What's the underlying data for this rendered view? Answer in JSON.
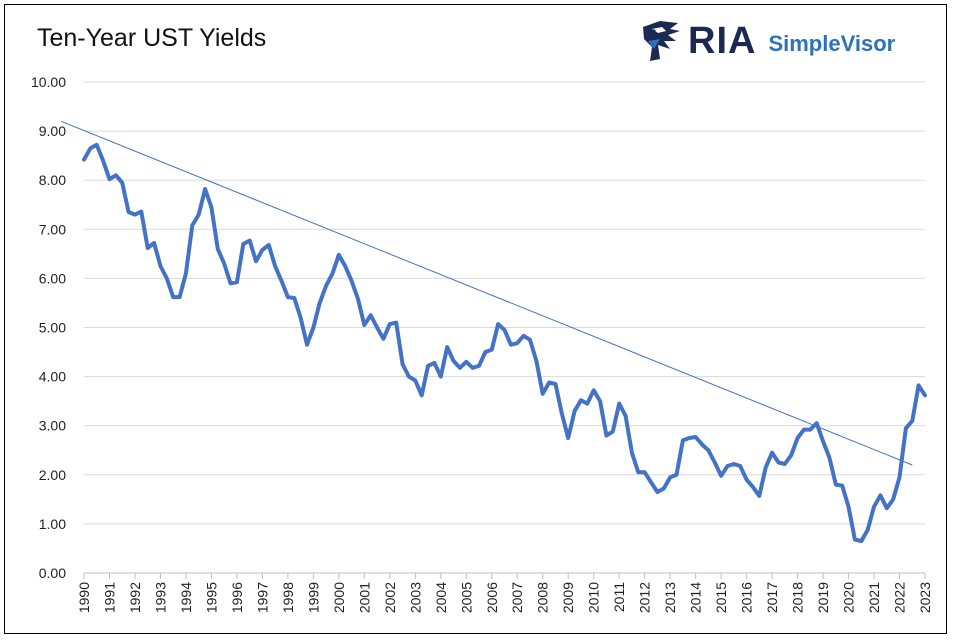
{
  "title": "Ten-Year UST Yields",
  "logo": {
    "brand": "RIA",
    "product": "SimpleVisor",
    "brand_color": "#1b2a52",
    "product_color": "#2a73b8"
  },
  "chart_data": {
    "type": "line",
    "title": "Ten-Year UST Yields",
    "xlabel": "",
    "ylabel": "",
    "ylim": [
      0,
      10
    ],
    "xlim": [
      1990,
      2023
    ],
    "grid": true,
    "legend": "none",
    "y_ticks": [
      "0.00",
      "1.00",
      "2.00",
      "3.00",
      "4.00",
      "5.00",
      "6.00",
      "7.00",
      "8.00",
      "9.00",
      "10.00"
    ],
    "x_ticks": [
      "1990",
      "1991",
      "1992",
      "1993",
      "1994",
      "1995",
      "1996",
      "1997",
      "1998",
      "1999",
      "2000",
      "2001",
      "2002",
      "2003",
      "2004",
      "2005",
      "2006",
      "2007",
      "2008",
      "2009",
      "2010",
      "2011",
      "2012",
      "2013",
      "2014",
      "2015",
      "2016",
      "2017",
      "2018",
      "2019",
      "2020",
      "2021",
      "2022",
      "2023"
    ],
    "series": [
      {
        "color": "#4472c4",
        "x": [
          1990.0,
          1990.25,
          1990.5,
          1990.75,
          1991.0,
          1991.25,
          1991.5,
          1991.75,
          1992.0,
          1992.25,
          1992.5,
          1992.75,
          1993.0,
          1993.25,
          1993.5,
          1993.75,
          1994.0,
          1994.25,
          1994.5,
          1994.75,
          1995.0,
          1995.25,
          1995.5,
          1995.75,
          1996.0,
          1996.25,
          1996.5,
          1996.75,
          1997.0,
          1997.25,
          1997.5,
          1997.75,
          1998.0,
          1998.25,
          1998.5,
          1998.75,
          1999.0,
          1999.25,
          1999.5,
          1999.75,
          2000.0,
          2000.25,
          2000.5,
          2000.75,
          2001.0,
          2001.25,
          2001.5,
          2001.75,
          2002.0,
          2002.25,
          2002.5,
          2002.75,
          2003.0,
          2003.25,
          2003.5,
          2003.75,
          2004.0,
          2004.25,
          2004.5,
          2004.75,
          2005.0,
          2005.25,
          2005.5,
          2005.75,
          2006.0,
          2006.25,
          2006.5,
          2006.75,
          2007.0,
          2007.25,
          2007.5,
          2007.75,
          2008.0,
          2008.25,
          2008.5,
          2008.75,
          2009.0,
          2009.25,
          2009.5,
          2009.75,
          2010.0,
          2010.25,
          2010.5,
          2010.75,
          2011.0,
          2011.25,
          2011.5,
          2011.75,
          2012.0,
          2012.25,
          2012.5,
          2012.75,
          2013.0,
          2013.25,
          2013.5,
          2013.75,
          2014.0,
          2014.25,
          2014.5,
          2014.75,
          2015.0,
          2015.25,
          2015.5,
          2015.75,
          2016.0,
          2016.25,
          2016.5,
          2016.75,
          2017.0,
          2017.25,
          2017.5,
          2017.75,
          2018.0,
          2018.25,
          2018.5,
          2018.75,
          2019.0,
          2019.25,
          2019.5,
          2019.75,
          2020.0,
          2020.25,
          2020.5,
          2020.75,
          2021.0,
          2021.25,
          2021.5,
          2021.75,
          2022.0,
          2022.25,
          2022.5,
          2022.75,
          2023.0
        ],
        "values": [
          8.42,
          8.65,
          8.72,
          8.4,
          8.02,
          8.1,
          7.95,
          7.35,
          7.3,
          7.36,
          6.62,
          6.72,
          6.25,
          6.0,
          5.62,
          5.62,
          6.1,
          7.08,
          7.3,
          7.82,
          7.45,
          6.6,
          6.3,
          5.9,
          5.92,
          6.7,
          6.77,
          6.35,
          6.58,
          6.68,
          6.25,
          5.95,
          5.62,
          5.6,
          5.2,
          4.65,
          5.0,
          5.5,
          5.85,
          6.1,
          6.48,
          6.25,
          5.95,
          5.58,
          5.05,
          5.25,
          5.0,
          4.77,
          5.07,
          5.1,
          4.25,
          4.0,
          3.92,
          3.62,
          4.22,
          4.28,
          4.0,
          4.6,
          4.32,
          4.18,
          4.3,
          4.18,
          4.22,
          4.5,
          4.55,
          5.07,
          4.95,
          4.65,
          4.68,
          4.83,
          4.75,
          4.32,
          3.65,
          3.88,
          3.85,
          3.25,
          2.75,
          3.3,
          3.52,
          3.45,
          3.72,
          3.5,
          2.8,
          2.88,
          3.45,
          3.2,
          2.45,
          2.05,
          2.05,
          1.85,
          1.65,
          1.72,
          1.95,
          2.0,
          2.7,
          2.75,
          2.77,
          2.62,
          2.5,
          2.25,
          1.98,
          2.18,
          2.22,
          2.18,
          1.9,
          1.75,
          1.57,
          2.15,
          2.45,
          2.25,
          2.22,
          2.4,
          2.75,
          2.92,
          2.92,
          3.05,
          2.68,
          2.35,
          1.8,
          1.78,
          1.35,
          0.68,
          0.65,
          0.88,
          1.35,
          1.58,
          1.32,
          1.5,
          1.95,
          2.95,
          3.1,
          3.82,
          3.62
        ]
      }
    ],
    "trendline": {
      "x": [
        1989.1,
        2022.5
      ],
      "values": [
        9.2,
        2.2
      ],
      "color": "#4472c4"
    }
  }
}
